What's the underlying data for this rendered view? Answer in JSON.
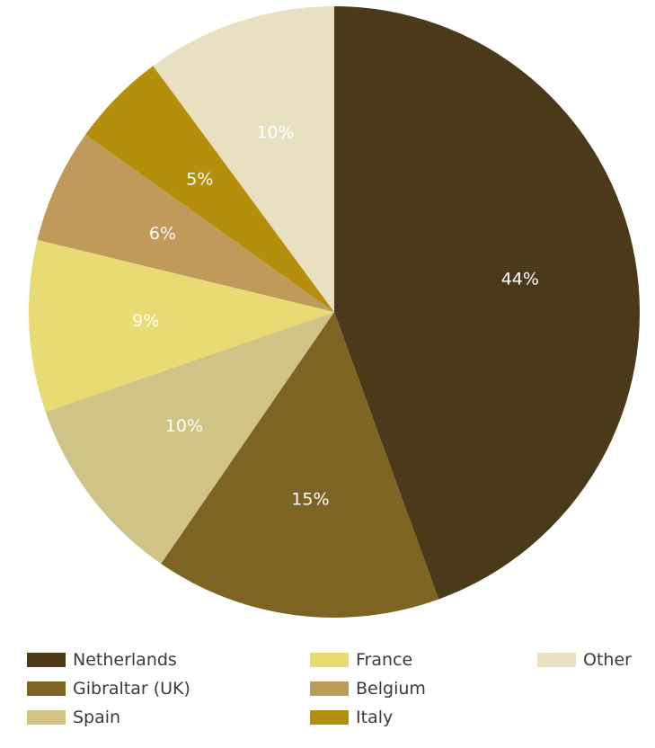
{
  "chart_data": {
    "type": "pie",
    "title": "",
    "slices": [
      {
        "name": "Netherlands",
        "value": 44,
        "label": "44%",
        "color": "#4a3a1a"
      },
      {
        "name": "Gibraltar (UK)",
        "value": 15,
        "label": "15%",
        "color": "#7d6423"
      },
      {
        "name": "Spain",
        "value": 10,
        "label": "10%",
        "color": "#cfc386"
      },
      {
        "name": "France",
        "value": 9,
        "label": "9%",
        "color": "#e8db73"
      },
      {
        "name": "Belgium",
        "value": 6,
        "label": "6%",
        "color": "#bf9a5a"
      },
      {
        "name": "Italy",
        "value": 5,
        "label": "5%",
        "color": "#b58f0b"
      },
      {
        "name": "Other",
        "value": 10,
        "label": "10%",
        "color": "#e8e0c1"
      }
    ],
    "start_angle": "12 o'clock",
    "direction": "clockwise",
    "legend_position": "bottom",
    "legend": [
      [
        "Netherlands",
        "Gibraltar (UK)",
        "Spain"
      ],
      [
        "France",
        "Belgium",
        "Italy"
      ],
      [
        "Other"
      ]
    ]
  }
}
